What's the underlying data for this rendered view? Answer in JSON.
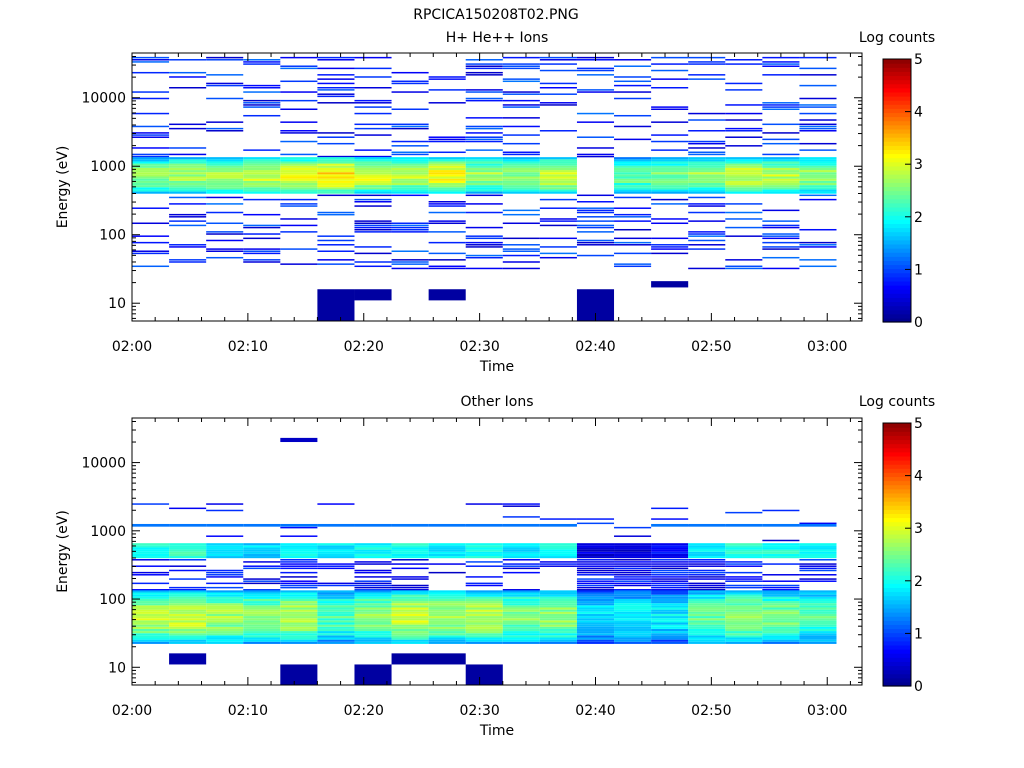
{
  "figure": {
    "title": "RPCICA150208T02.PNG"
  },
  "colors": {
    "frame": "#000000",
    "background": "#ffffff",
    "colormap": "jet",
    "colormap_stops": [
      "#00008f",
      "#0000ff",
      "#0080ff",
      "#00ffff",
      "#80ff80",
      "#ffff00",
      "#ff8000",
      "#ff0000",
      "#800000"
    ]
  },
  "chart_data": [
    {
      "type": "heatmap",
      "title": "H+ He++ Ions",
      "xlabel": "Time",
      "ylabel": "Energy (eV)",
      "x_ticks": [
        "02:00",
        "02:10",
        "02:20",
        "02:30",
        "02:40",
        "02:50",
        "03:00"
      ],
      "x_range_minutes": [
        0,
        63
      ],
      "y_scale": "log",
      "y_ticks": [
        10,
        100,
        1000,
        10000
      ],
      "y_range": [
        5.5,
        45000
      ],
      "colorbar": {
        "label": "Log counts",
        "range": [
          0,
          5
        ],
        "ticks": [
          0,
          1,
          2,
          3,
          4,
          5
        ]
      },
      "time_bins_minutes": [
        0,
        3.2,
        6.4,
        9.6,
        12.8,
        16,
        19.2,
        22.4,
        25.6,
        28.8,
        32,
        35.2,
        38.4,
        41.6,
        44.8,
        48,
        51.2,
        54.4,
        57.6,
        60.8
      ],
      "energy_band": {
        "description_values": "main ion band ~380-1300 eV",
        "low_eV": 380,
        "high_eV": 1300,
        "levels_by_bin": [
          2.6,
          2.7,
          2.8,
          2.9,
          3.0,
          3.3,
          3.0,
          2.8,
          3.1,
          2.7,
          2.6,
          2.9,
          0,
          2.4,
          2.5,
          2.7,
          2.9,
          2.8,
          2.6
        ]
      },
      "sparse_levels": [
        0.3,
        1.2
      ],
      "low_energy_patches": [
        {
          "t0": 16,
          "t1": 19.2,
          "e_low": 5.5,
          "e_high": 16,
          "level": 0.1
        },
        {
          "t0": 19.2,
          "t1": 22.4,
          "e_low": 11,
          "e_high": 16,
          "level": 0.1
        },
        {
          "t0": 25.6,
          "t1": 28.8,
          "e_low": 11,
          "e_high": 16,
          "level": 0.1
        },
        {
          "t0": 38.4,
          "t1": 41.6,
          "e_low": 5.5,
          "e_high": 16,
          "level": 0.1
        },
        {
          "t0": 44.8,
          "t1": 48,
          "e_low": 17,
          "e_high": 21,
          "level": 0.1
        }
      ]
    },
    {
      "type": "heatmap",
      "title": "Other Ions",
      "xlabel": "Time",
      "ylabel": "Energy (eV)",
      "x_ticks": [
        "02:00",
        "02:10",
        "02:20",
        "02:30",
        "02:40",
        "02:50",
        "03:00"
      ],
      "x_range_minutes": [
        0,
        63
      ],
      "y_scale": "log",
      "y_ticks": [
        10,
        100,
        1000,
        10000
      ],
      "y_range": [
        5.5,
        45000
      ],
      "colorbar": {
        "label": "Log counts",
        "range": [
          0,
          5
        ],
        "ticks": [
          0,
          1,
          2,
          3,
          4,
          5
        ]
      },
      "time_bins_minutes": [
        0,
        3.2,
        6.4,
        9.6,
        12.8,
        16,
        19.2,
        22.4,
        25.6,
        28.8,
        32,
        35.2,
        38.4,
        41.6,
        44.8,
        48,
        51.2,
        54.4,
        57.6,
        60.8
      ],
      "energy_band": {
        "description_values": "main heavy-ion band ~22-130 eV, secondary ~380-650 eV",
        "low_eV": 22,
        "high_eV": 130,
        "levels_by_bin": [
          2.8,
          2.9,
          2.7,
          2.6,
          2.8,
          2.3,
          2.6,
          2.9,
          2.7,
          2.8,
          2.5,
          2.6,
          1.8,
          1.9,
          1.8,
          2.4,
          2.7,
          2.5,
          2.3
        ],
        "secondary_low_eV": 380,
        "secondary_high_eV": 650,
        "secondary_levels_by_bin": [
          2.0,
          2.1,
          1.6,
          1.7,
          1.9,
          1.8,
          1.9,
          2.0,
          1.8,
          2.0,
          1.7,
          1.9,
          0.4,
          0.4,
          0.6,
          1.8,
          2.1,
          2.0,
          1.9
        ],
        "line_1200_eV_level": 1.2
      },
      "sparse_levels": [
        0.3,
        1.0
      ],
      "low_energy_patches": [
        {
          "t0": 3.2,
          "t1": 6.4,
          "e_low": 11,
          "e_high": 16,
          "level": 0.15
        },
        {
          "t0": 12.8,
          "t1": 16,
          "e_low": 5.5,
          "e_high": 11,
          "level": 0.1
        },
        {
          "t0": 19.2,
          "t1": 22.4,
          "e_low": 5.5,
          "e_high": 11,
          "level": 0.1
        },
        {
          "t0": 22.4,
          "t1": 28.8,
          "e_low": 11,
          "e_high": 16,
          "level": 0.1
        },
        {
          "t0": 28.8,
          "t1": 32,
          "e_low": 5.5,
          "e_high": 11,
          "level": 0.1
        },
        {
          "t0": 12.8,
          "t1": 16,
          "e_low": 20000,
          "e_high": 23000,
          "level": 0.3
        }
      ]
    }
  ]
}
